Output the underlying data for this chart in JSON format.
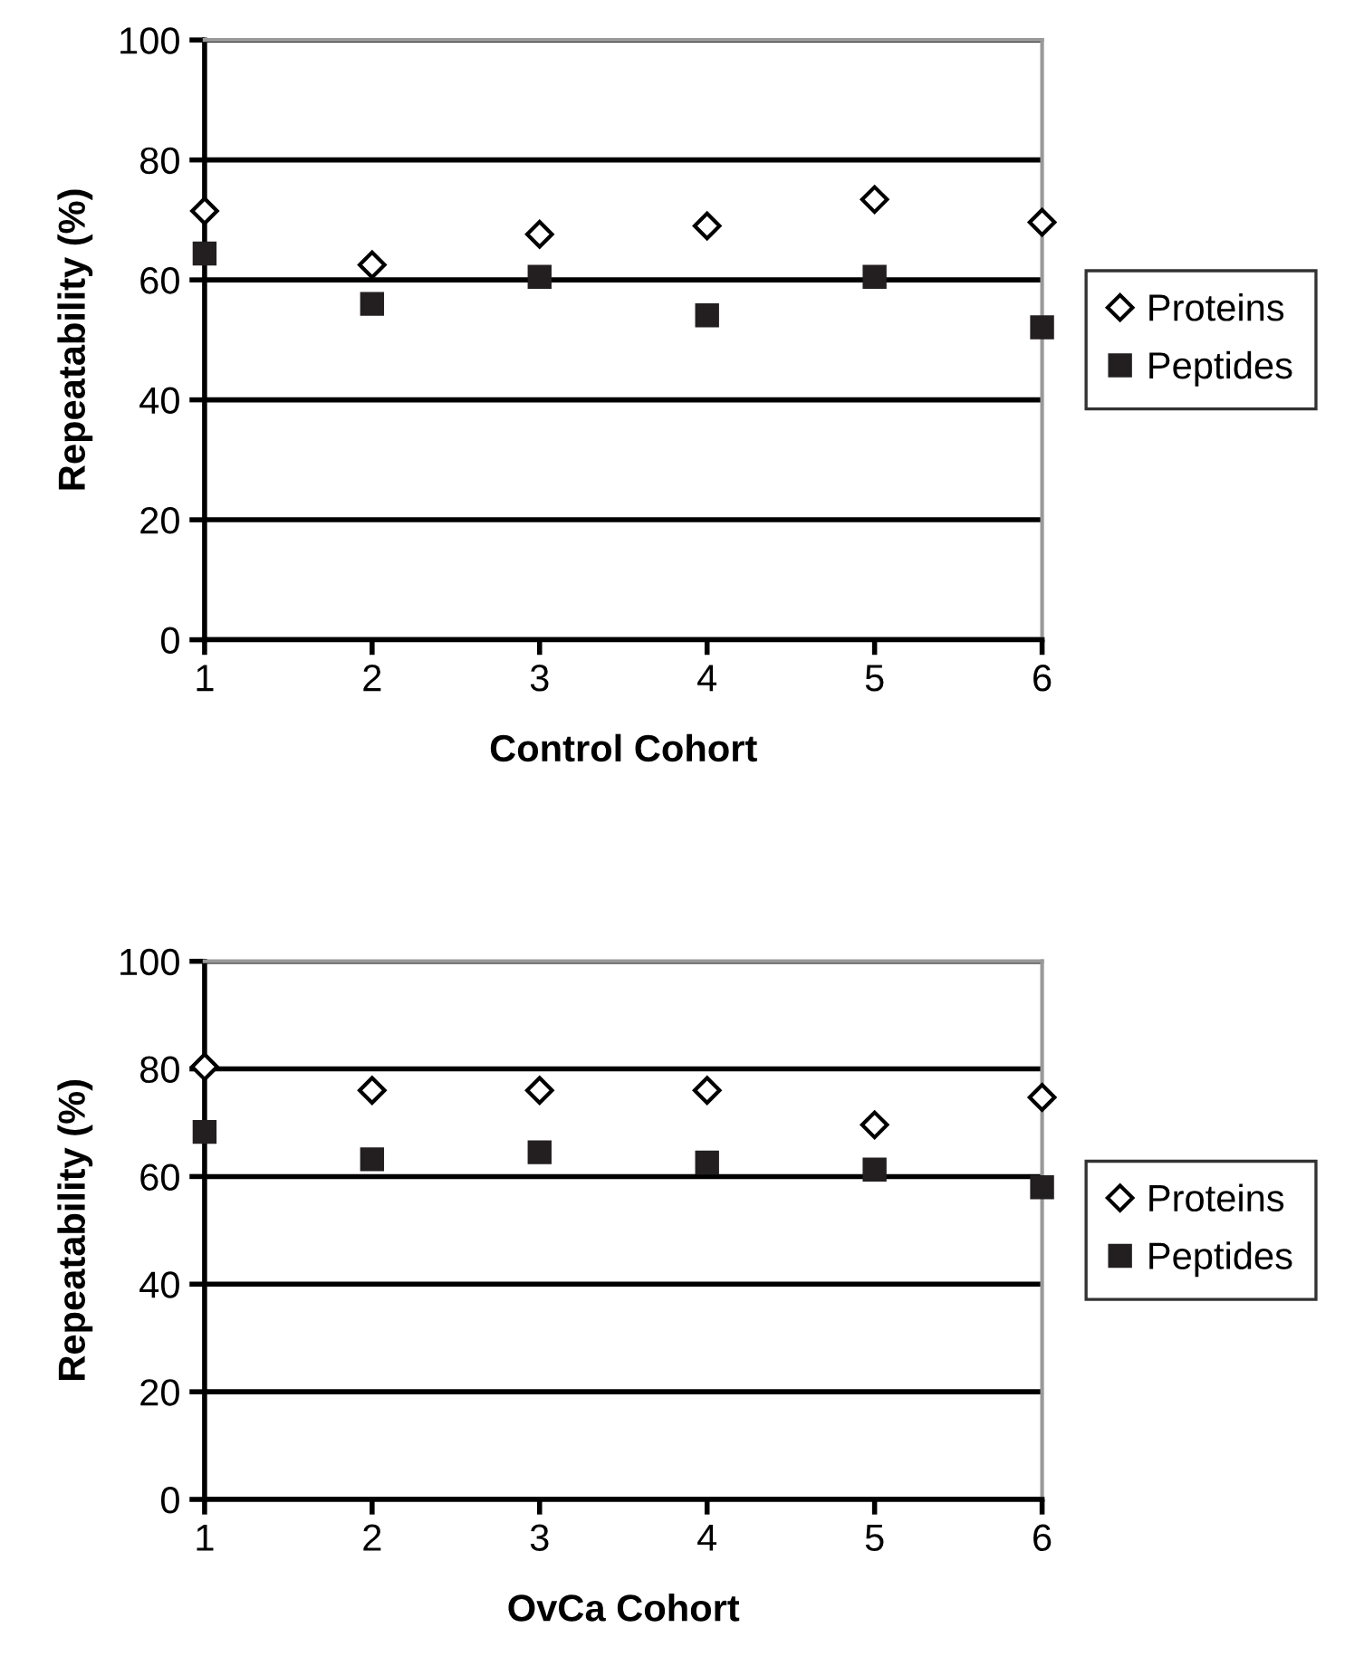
{
  "chart_data": [
    {
      "type": "scatter",
      "xlabel": "Control Cohort",
      "ylabel": "Repeatability (%)",
      "x": [
        1,
        2,
        3,
        4,
        5,
        6
      ],
      "xlim": [
        1,
        6
      ],
      "xticks": [
        1,
        2,
        3,
        4,
        5,
        6
      ],
      "ylim": [
        0,
        100
      ],
      "yticks": [
        0,
        20,
        40,
        60,
        80,
        100
      ],
      "grid": "y",
      "legend": "right",
      "series": [
        {
          "name": "Proteins",
          "color": "#000000",
          "marker": "diamond",
          "values": [
            71.5,
            62.5,
            67.6,
            69.0,
            73.4,
            69.6
          ]
        },
        {
          "name": "Peptides",
          "color": "#231f20",
          "marker": "square",
          "values": [
            64.4,
            56.0,
            60.5,
            54.1,
            60.5,
            52.1
          ]
        }
      ]
    },
    {
      "type": "scatter",
      "xlabel": "OvCa Cohort",
      "ylabel": "Repeatability (%)",
      "x": [
        1,
        2,
        3,
        4,
        5,
        6
      ],
      "xlim": [
        1,
        6
      ],
      "xticks": [
        1,
        2,
        3,
        4,
        5,
        6
      ],
      "ylim": [
        0,
        100
      ],
      "yticks": [
        0,
        20,
        40,
        60,
        80,
        100
      ],
      "grid": "y",
      "legend": "right",
      "series": [
        {
          "name": "Proteins",
          "color": "#000000",
          "marker": "diamond",
          "values": [
            80.4,
            76.0,
            76.0,
            76.0,
            69.6,
            74.7
          ]
        },
        {
          "name": "Peptides",
          "color": "#231f20",
          "marker": "square",
          "values": [
            68.3,
            63.2,
            64.5,
            62.6,
            61.3,
            58.0
          ]
        }
      ]
    }
  ]
}
